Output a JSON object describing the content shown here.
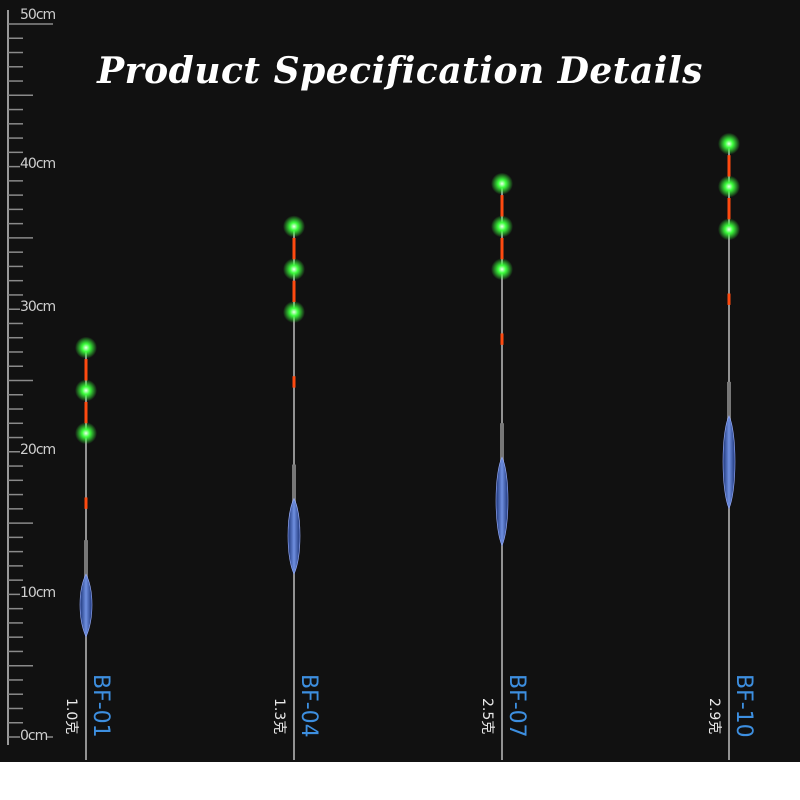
{
  "title": "Product Specification Details",
  "ruler": {
    "unit": "cm",
    "labels": [
      "0cm",
      "10cm",
      "20cm",
      "30cm",
      "40cm",
      "50cm"
    ],
    "max": 50
  },
  "colors": {
    "background": "#111111",
    "model_text": "#3d8fe0",
    "glow": "#3cff3c",
    "segment": "#ff4a10",
    "body": "#2a4fa8"
  },
  "floats": [
    {
      "model": "BF-01",
      "weight": "1.0克",
      "height_cm": 27.3,
      "body_cm": [
        7.3,
        11.0
      ]
    },
    {
      "model": "BF-04",
      "weight": "1.3克",
      "height_cm": 35.8,
      "body_cm": [
        11.7,
        16.3
      ]
    },
    {
      "model": "BF-07",
      "weight": "2.5克",
      "height_cm": 38.8,
      "body_cm": [
        13.7,
        19.2
      ]
    },
    {
      "model": "BF-10",
      "weight": "2.9克",
      "height_cm": 41.6,
      "body_cm": [
        16.3,
        22.1
      ]
    }
  ]
}
